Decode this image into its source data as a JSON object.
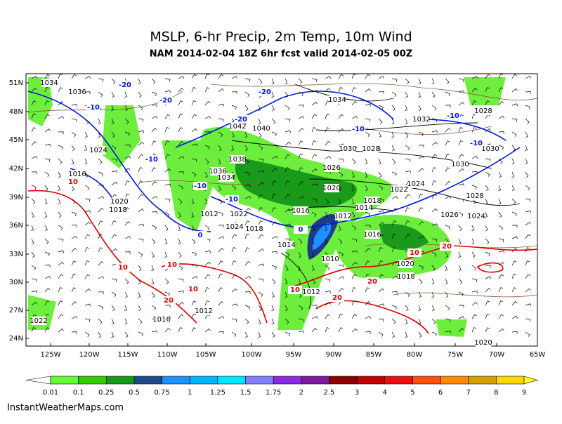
{
  "title": "MSLP, 6-hr Precip, 2m Temp, 10m Wind",
  "subtitle": "NAM 2014-02-04 18Z 6hr fcst valid 2014-02-05 00Z",
  "lat_labels": [
    "51N",
    "48N",
    "45N",
    "42N",
    "39N",
    "36N",
    "33N",
    "30N",
    "27N",
    "24N"
  ],
  "lon_labels": [
    "125W",
    "120W",
    "115W",
    "110W",
    "105W",
    "100W",
    "95W",
    "90W",
    "85W",
    "80W",
    "75W",
    "70W",
    "65W"
  ],
  "colorbar": {
    "labels": [
      "0.01",
      "0.1",
      "0.25",
      "0.5",
      "0.75",
      "1",
      "1.25",
      "1.5",
      "1.75",
      "2",
      "2.5",
      "3",
      "4",
      "5",
      "6",
      "7",
      "8",
      "9"
    ],
    "colors": [
      "#ffffff",
      "#66ff33",
      "#33cc00",
      "#1a9a1a",
      "#1e4a8c",
      "#1e90ff",
      "#00b4ff",
      "#00e5ff",
      "#8080ff",
      "#8a2be2",
      "#7a1a9a",
      "#8b0000",
      "#c00000",
      "#e81010",
      "#ff5010",
      "#ff8c00",
      "#d4a000",
      "#ffd700",
      "#ffff30"
    ]
  },
  "isobar_labels": [
    "1034",
    "1036",
    "1034",
    "1032",
    "1028",
    "1042",
    "1040",
    "1038",
    "1036",
    "1034",
    "1030",
    "1028",
    "1026",
    "1020",
    "1022",
    "1024",
    "1018",
    "1014",
    "1016",
    "1012",
    "1016",
    "1014",
    "1010",
    "1012",
    "1020",
    "1018",
    "1024",
    "1026",
    "1028",
    "1030",
    "1030",
    "1024",
    "1020",
    "1018",
    "1016",
    "1022",
    "1012",
    "1022",
    "1024",
    "1018",
    "1016",
    "1012",
    "1020"
  ],
  "temp_labels": [
    "-20",
    "-20",
    "-20",
    "-10",
    "-20",
    "-10",
    "-10",
    "-10",
    "-10",
    "-10",
    "-10",
    "0",
    "10",
    "10",
    "10",
    "10",
    "10",
    "20",
    "20",
    "20",
    "10",
    "20",
    "0"
  ],
  "source": "InstantWeatherMaps.com"
}
